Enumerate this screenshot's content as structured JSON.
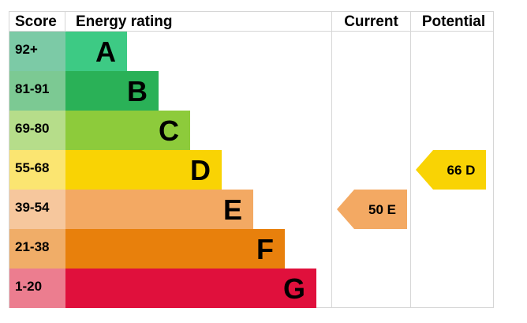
{
  "chart_data": {
    "type": "bar",
    "headers": {
      "score": "Score",
      "rating": "Energy rating",
      "current": "Current",
      "potential": "Potential"
    },
    "bands": [
      {
        "score": "92+",
        "letter": "A",
        "bar_color": "#3dca84",
        "score_color": "#7ccaa6"
      },
      {
        "score": "81-91",
        "letter": "B",
        "bar_color": "#2ab157",
        "score_color": "#7cc993"
      },
      {
        "score": "69-80",
        "letter": "C",
        "bar_color": "#8dcb3b",
        "score_color": "#b6dd8a"
      },
      {
        "score": "55-68",
        "letter": "D",
        "bar_color": "#f9d304",
        "score_color": "#fbe571"
      },
      {
        "score": "39-54",
        "letter": "E",
        "bar_color": "#f3a963",
        "score_color": "#f6c79d"
      },
      {
        "score": "21-38",
        "letter": "F",
        "bar_color": "#e8800c",
        "score_color": "#f0ad68"
      },
      {
        "score": "1-20",
        "letter": "G",
        "bar_color": "#e0103c",
        "score_color": "#ec7d8f"
      }
    ],
    "current": {
      "value": 50,
      "letter": "E",
      "label": "50  E",
      "color": "#f3a963"
    },
    "potential": {
      "value": 66,
      "letter": "D",
      "label": "66  D",
      "color": "#f9d304"
    }
  }
}
